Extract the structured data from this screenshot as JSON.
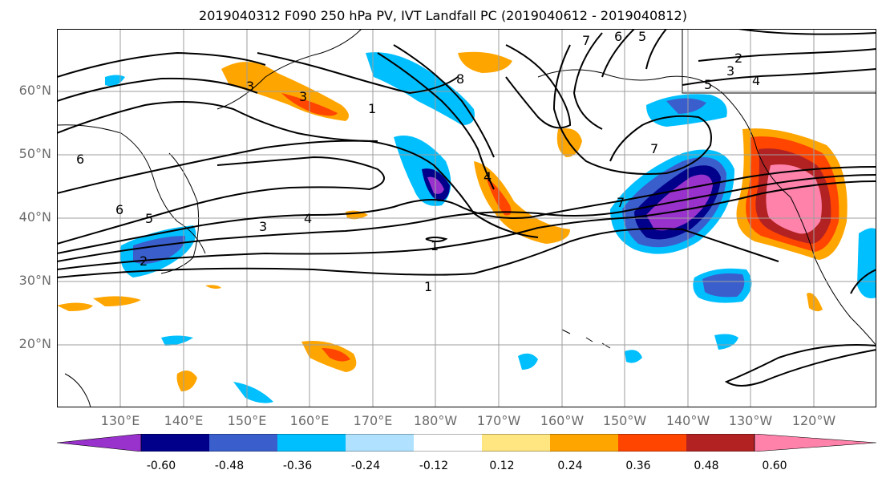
{
  "title": "2019040312 F090 250 hPa PV, IVT Landfall PC (2019040612 - 2019040812)",
  "lat_labels": [
    "60°N",
    "50°N",
    "40°N",
    "30°N",
    "20°N"
  ],
  "lon_labels": [
    "130°E",
    "140°E",
    "150°E",
    "160°E",
    "170°E",
    "180°W",
    "170°W",
    "160°W",
    "150°W",
    "140°W",
    "130°W",
    "120°W"
  ],
  "contour_labels": [
    "1",
    "2",
    "3",
    "4",
    "5",
    "6",
    "7",
    "8"
  ],
  "colorbar": {
    "ticks": [
      "-0.60",
      "-0.48",
      "-0.36",
      "-0.24",
      "-0.12",
      "0.12",
      "0.24",
      "0.36",
      "0.48",
      "0.60"
    ],
    "colors": [
      "#9932cc",
      "#00008b",
      "#3a5fcd",
      "#00bfff",
      "#b0e2ff",
      "#ffffff",
      "#ffe680",
      "#ffa500",
      "#ff4500",
      "#b22222",
      "#ff82ab"
    ]
  }
}
